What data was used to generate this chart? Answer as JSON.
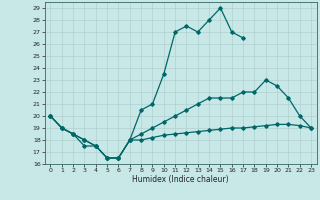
{
  "xlabel": "Humidex (Indice chaleur)",
  "bg_color": "#c8e8e8",
  "grid_color": "#b0d0d0",
  "line_color": "#006666",
  "xlim": [
    -0.5,
    23.5
  ],
  "ylim": [
    16,
    29.5
  ],
  "xticks": [
    0,
    1,
    2,
    3,
    4,
    5,
    6,
    7,
    8,
    9,
    10,
    11,
    12,
    13,
    14,
    15,
    16,
    17,
    18,
    19,
    20,
    21,
    22,
    23
  ],
  "yticks": [
    16,
    17,
    18,
    19,
    20,
    21,
    22,
    23,
    24,
    25,
    26,
    27,
    28,
    29
  ],
  "line1_x": [
    0,
    1,
    2,
    3,
    4,
    5,
    6,
    7,
    8,
    9,
    10,
    11,
    12,
    13,
    14,
    15,
    16,
    17
  ],
  "line1_y": [
    20,
    19,
    18.5,
    18,
    17.5,
    16.5,
    16.5,
    18,
    20.5,
    21.0,
    23.5,
    27.0,
    27.5,
    27.0,
    28.0,
    29.0,
    27.0,
    26.5
  ],
  "line2_x": [
    0,
    1,
    2,
    3,
    4,
    5,
    6,
    7,
    8,
    9,
    10,
    11,
    12,
    13,
    14,
    15,
    16,
    17,
    18,
    19,
    20,
    21,
    22,
    23
  ],
  "line2_y": [
    20,
    19,
    18.5,
    18,
    17.5,
    16.5,
    16.5,
    18,
    18.5,
    19.0,
    19.5,
    20.0,
    20.5,
    21.0,
    21.5,
    21.5,
    21.5,
    22.0,
    22.0,
    23.0,
    22.5,
    21.5,
    20.0,
    19.0
  ],
  "line3_x": [
    0,
    1,
    2,
    3,
    4,
    5,
    6,
    7,
    8,
    9,
    10,
    11,
    12,
    13,
    14,
    15,
    16,
    17,
    18,
    19,
    20,
    21,
    22,
    23
  ],
  "line3_y": [
    20,
    19,
    18.5,
    17.5,
    17.5,
    16.5,
    16.5,
    18,
    18.0,
    18.2,
    18.4,
    18.5,
    18.6,
    18.7,
    18.8,
    18.9,
    19.0,
    19.0,
    19.1,
    19.2,
    19.3,
    19.3,
    19.2,
    19.0
  ]
}
